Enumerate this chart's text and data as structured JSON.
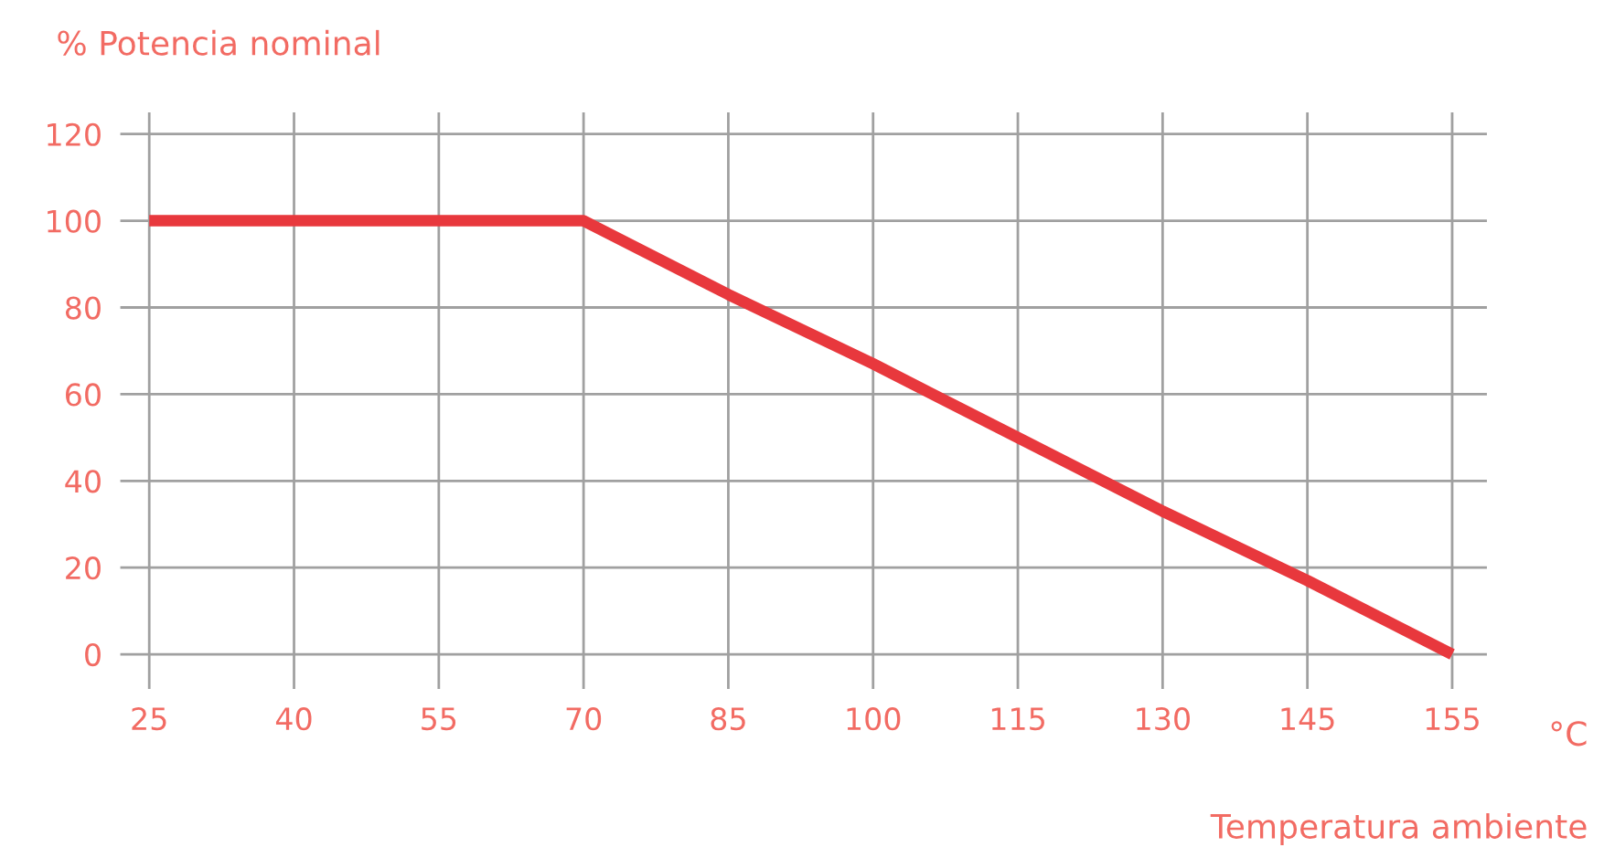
{
  "chart_data": {
    "type": "line",
    "ylabel": "% Potencia nominal",
    "xlabel": "Temperatura ambiente",
    "annotations": [
      "°C"
    ],
    "categories": [
      "25",
      "40",
      "55",
      "70",
      "85",
      "100",
      "115",
      "130",
      "145",
      "155"
    ],
    "series": [
      {
        "color": "#e8383d",
        "values": [
          100,
          100,
          100,
          100,
          83,
          67,
          50,
          33,
          17,
          0
        ]
      }
    ],
    "ylim": [
      -8,
      125
    ],
    "yticks": [
      0,
      20,
      40,
      60,
      80,
      100,
      120
    ],
    "grid": true,
    "legend": false,
    "marker": "none",
    "line_style": "solid"
  }
}
